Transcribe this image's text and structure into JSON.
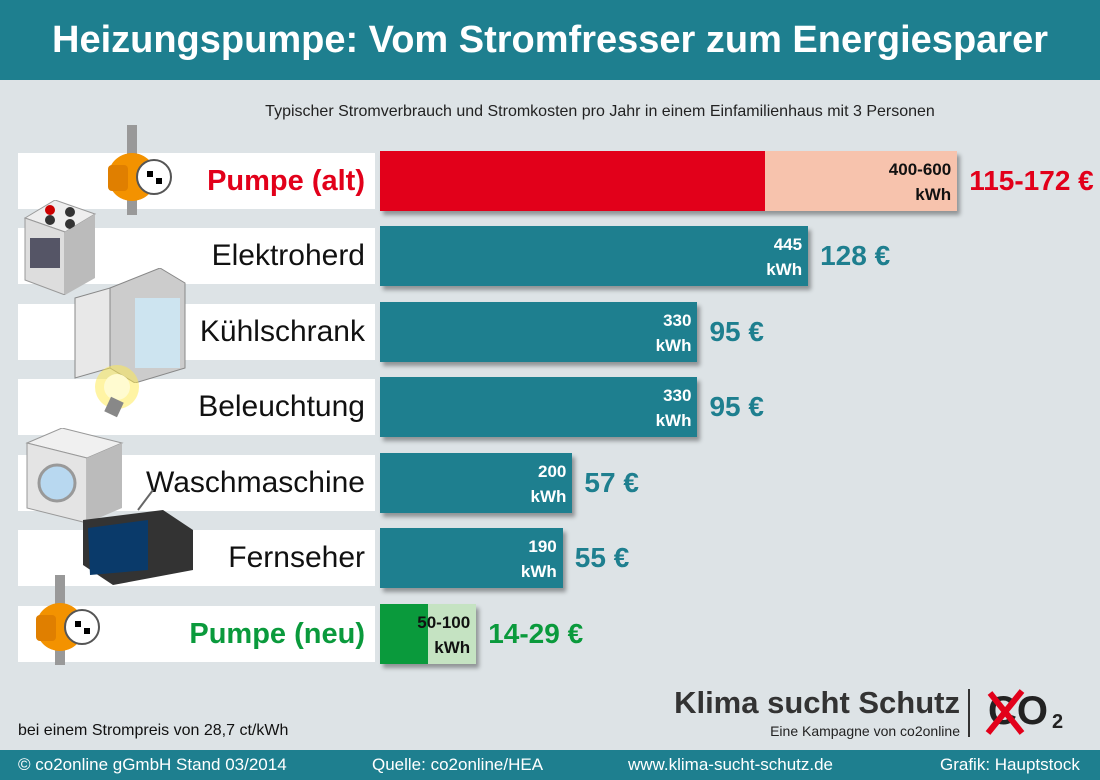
{
  "title": "Heizungspumpe: Vom Stromfresser zum Energiesparer",
  "subtitle": "Typischer Stromverbrauch und Stromkosten pro Jahr in einem Einfamilienhaus mit 3 Personen",
  "price_note": "bei einem Strompreis von 28,7 ct/kWh",
  "logo": {
    "main": "Klima sucht Schutz",
    "sub": "Eine Kampagne von co2online",
    "co2": "CO",
    "co2_sub": "2"
  },
  "footer": {
    "copyright": "© co2online gGmbH Stand 03/2014",
    "source": "Quelle: co2online/HEA",
    "url": "www.klima-sucht-schutz.de",
    "credit": "Grafik: Hauptstock"
  },
  "colors": {
    "teal": "#1e7f8f",
    "red": "#e2001a",
    "red_light": "#f7c3ad",
    "green": "#0a9a3c",
    "green_light": "#c5e3c2"
  },
  "chart_data": {
    "type": "bar",
    "orientation": "horizontal",
    "unit": "kWh",
    "categories": [
      "Pumpe (alt)",
      "Elektroherd",
      "Kühlschrank",
      "Beleuchtung",
      "Waschmaschine",
      "Fernseher",
      "Pumpe (neu)"
    ],
    "values_min": [
      400,
      445,
      330,
      330,
      200,
      190,
      50
    ],
    "values_max": [
      600,
      445,
      330,
      330,
      200,
      190,
      100
    ],
    "kwh_labels": [
      [
        "400-600",
        "kWh"
      ],
      [
        "445",
        "kWh"
      ],
      [
        "330",
        "kWh"
      ],
      [
        "330",
        "kWh"
      ],
      [
        "200",
        "kWh"
      ],
      [
        "190",
        "kWh"
      ],
      [
        "50-100",
        "kWh"
      ]
    ],
    "cost_labels": [
      "115-172 €",
      "128 €",
      "95 €",
      "95 €",
      "57 €",
      "55 €",
      "14-29 €"
    ],
    "styles": [
      "red",
      "teal",
      "teal",
      "teal",
      "teal",
      "teal",
      "green"
    ],
    "icons": [
      "heating-pump-icon",
      "electric-stove-icon",
      "fridge-icon",
      "light-bulb-icon",
      "washing-machine-icon",
      "television-icon",
      "heating-pump-icon"
    ]
  }
}
